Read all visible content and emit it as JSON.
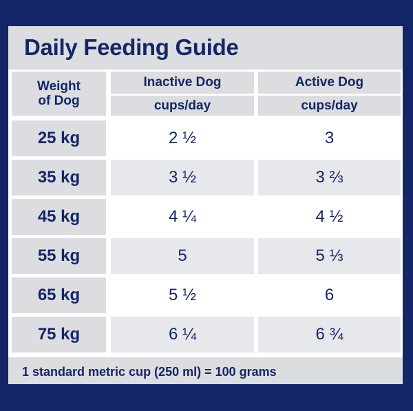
{
  "title": "Daily Feeding Guide",
  "columns": {
    "weight": "Weight\nof Dog",
    "inactive": "Inactive Dog",
    "active": "Active Dog",
    "unit": "cups/day"
  },
  "rows": [
    {
      "weight": "25 kg",
      "inactive": "2 ½",
      "active": "3"
    },
    {
      "weight": "35 kg",
      "inactive": "3 ½",
      "active": "3 ⅔"
    },
    {
      "weight": "45 kg",
      "inactive": "4 ¼",
      "active": "4 ½"
    },
    {
      "weight": "55 kg",
      "inactive": "5",
      "active": "5 ⅓"
    },
    {
      "weight": "65 kg",
      "inactive": "5 ½",
      "active": "6"
    },
    {
      "weight": "75 kg",
      "inactive": "6 ¼",
      "active": "6 ¾"
    }
  ],
  "footnote": "1 standard metric cup (250 ml) = 100 grams",
  "colors": {
    "navy": "#142667",
    "grey": "#dcdde0"
  }
}
